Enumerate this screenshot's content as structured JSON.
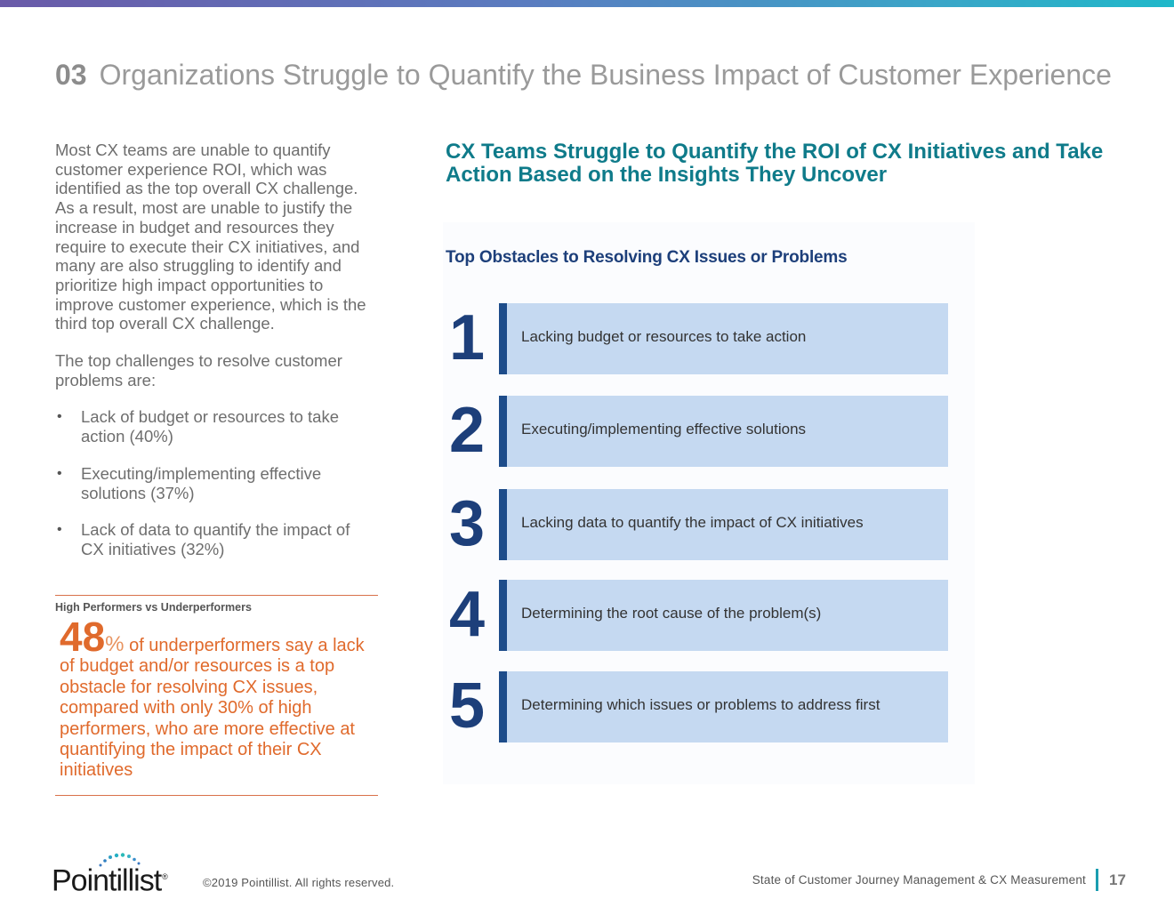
{
  "header": {
    "section_number": "03",
    "title": "Organizations Struggle to Quantify the Business Impact of Customer Experience"
  },
  "intro": {
    "paragraph1": "Most CX teams are unable to quantify customer experience ROI, which was identified as the top overall CX challenge. As a result, most are unable to justify the increase in budget and resources they require to execute their CX initiatives, and many are also struggling to identify and prioritize high impact opportunities to improve customer experience, which is the third top overall CX challenge.",
    "paragraph2": "The top challenges to resolve customer problems are:",
    "bullets": [
      "Lack of budget or resources to take action (40%)",
      "Executing/implementing effective solutions (37%)",
      "Lack of data to quantify the impact of CX initiatives (32%)"
    ]
  },
  "highlight": {
    "label": "High Performers vs Underperformers",
    "stat_number": "48",
    "stat_unit": "%",
    "stat_text": " of underperformers say a lack of budget and/or resources is a top obstacle for resolving CX issues, compared with only 30% of high performers, who are more effective at quantifying the impact of their CX initiatives"
  },
  "right": {
    "title": "CX Teams Struggle to Quantify the ROI of CX Initiatives and Take Action Based on the Insights They Uncover",
    "panel_title": "Top Obstacles to Resolving CX Issues or Problems",
    "obstacles": [
      {
        "rank": "1",
        "text": "Lacking budget or resources to take action"
      },
      {
        "rank": "2",
        "text": "Executing/implementing effective solutions"
      },
      {
        "rank": "3",
        "text": "Lacking data to quantify the impact of CX initiatives"
      },
      {
        "rank": "4",
        "text": "Determining the root cause of the problem(s)"
      },
      {
        "rank": "5",
        "text": "Determining which issues or problems to address first"
      }
    ]
  },
  "footer": {
    "logo_text": "Pointillist",
    "logo_reg": "®",
    "copyright": "©2019 Pointillist. All rights reserved.",
    "document_name": "State of Customer Journey Management & CX Measurement",
    "page_number": "17"
  },
  "colors": {
    "accent_orange": "#e06a2c",
    "teal_title": "#0f7b8a",
    "navy": "#1d3f7a",
    "bar_fill": "#c5d9f1"
  }
}
